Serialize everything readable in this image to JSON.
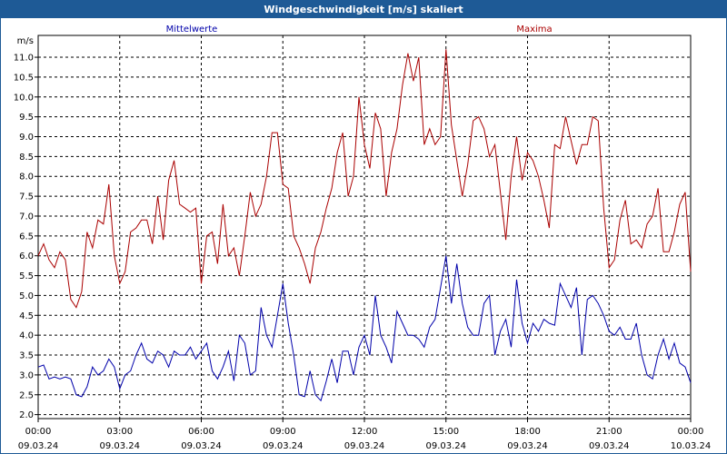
{
  "window": {
    "title": "Windgeschwindigkeit [m/s] skaliert"
  },
  "chart_data": {
    "type": "line",
    "title": "Windgeschwindigkeit [m/s] skaliert",
    "ylabel": "m/s",
    "xlabel": "",
    "ylim": [
      1.9,
      11.55
    ],
    "xlim_hours": [
      0,
      24
    ],
    "grid": true,
    "y_ticks": [
      "2.0",
      "2.5",
      "3.0",
      "3.5",
      "4.0",
      "4.5",
      "5.0",
      "5.5",
      "6.0",
      "6.5",
      "7.0",
      "7.5",
      "8.0",
      "8.5",
      "9.0",
      "9.5",
      "10.0",
      "10.5",
      "11.0"
    ],
    "x_ticks": [
      {
        "time": "00:00",
        "date": "09.03.24"
      },
      {
        "time": "03:00",
        "date": "09.03.24"
      },
      {
        "time": "06:00",
        "date": "09.03.24"
      },
      {
        "time": "09:00",
        "date": "09.03.24"
      },
      {
        "time": "12:00",
        "date": "09.03.24"
      },
      {
        "time": "15:00",
        "date": "09.03.24"
      },
      {
        "time": "18:00",
        "date": "09.03.24"
      },
      {
        "time": "21:00",
        "date": "09.03.24"
      },
      {
        "time": "00:00",
        "date": "10.03.24"
      }
    ],
    "series": [
      {
        "name": "Mittelwerte",
        "color": "#0000aa",
        "points": [
          [
            0.0,
            3.2
          ],
          [
            0.2,
            3.25
          ],
          [
            0.4,
            2.9
          ],
          [
            0.6,
            2.95
          ],
          [
            0.8,
            2.9
          ],
          [
            1.0,
            2.95
          ],
          [
            1.2,
            2.9
          ],
          [
            1.4,
            2.5
          ],
          [
            1.6,
            2.45
          ],
          [
            1.8,
            2.7
          ],
          [
            2.0,
            3.2
          ],
          [
            2.2,
            3.0
          ],
          [
            2.4,
            3.1
          ],
          [
            2.6,
            3.4
          ],
          [
            2.8,
            3.2
          ],
          [
            3.0,
            2.65
          ],
          [
            3.2,
            3.0
          ],
          [
            3.4,
            3.1
          ],
          [
            3.6,
            3.5
          ],
          [
            3.8,
            3.8
          ],
          [
            4.0,
            3.4
          ],
          [
            4.2,
            3.3
          ],
          [
            4.4,
            3.6
          ],
          [
            4.6,
            3.5
          ],
          [
            4.8,
            3.2
          ],
          [
            5.0,
            3.6
          ],
          [
            5.2,
            3.5
          ],
          [
            5.4,
            3.5
          ],
          [
            5.6,
            3.7
          ],
          [
            5.8,
            3.4
          ],
          [
            6.0,
            3.6
          ],
          [
            6.2,
            3.8
          ],
          [
            6.4,
            3.1
          ],
          [
            6.6,
            2.9
          ],
          [
            6.8,
            3.2
          ],
          [
            7.0,
            3.6
          ],
          [
            7.2,
            2.85
          ],
          [
            7.4,
            4.0
          ],
          [
            7.6,
            3.8
          ],
          [
            7.8,
            3.0
          ],
          [
            8.0,
            3.1
          ],
          [
            8.2,
            4.7
          ],
          [
            8.4,
            4.0
          ],
          [
            8.6,
            3.7
          ],
          [
            8.8,
            4.5
          ],
          [
            9.0,
            5.3
          ],
          [
            9.2,
            4.3
          ],
          [
            9.4,
            3.5
          ],
          [
            9.6,
            2.5
          ],
          [
            9.8,
            2.45
          ],
          [
            10.0,
            3.1
          ],
          [
            10.2,
            2.5
          ],
          [
            10.4,
            2.35
          ],
          [
            10.6,
            2.85
          ],
          [
            10.8,
            3.4
          ],
          [
            11.0,
            2.8
          ],
          [
            11.2,
            3.6
          ],
          [
            11.4,
            3.6
          ],
          [
            11.6,
            3.0
          ],
          [
            11.8,
            3.7
          ],
          [
            12.0,
            4.0
          ],
          [
            12.2,
            3.5
          ],
          [
            12.4,
            5.0
          ],
          [
            12.6,
            4.0
          ],
          [
            12.8,
            3.7
          ],
          [
            13.0,
            3.3
          ],
          [
            13.2,
            4.6
          ],
          [
            13.4,
            4.3
          ],
          [
            13.6,
            4.0
          ],
          [
            13.8,
            4.0
          ],
          [
            14.0,
            3.9
          ],
          [
            14.2,
            3.7
          ],
          [
            14.4,
            4.2
          ],
          [
            14.6,
            4.4
          ],
          [
            14.8,
            5.2
          ],
          [
            15.0,
            6.0
          ],
          [
            15.2,
            4.8
          ],
          [
            15.4,
            5.8
          ],
          [
            15.6,
            4.8
          ],
          [
            15.8,
            4.2
          ],
          [
            16.0,
            4.0
          ],
          [
            16.2,
            4.0
          ],
          [
            16.4,
            4.8
          ],
          [
            16.6,
            5.0
          ],
          [
            16.8,
            3.5
          ],
          [
            17.0,
            4.1
          ],
          [
            17.2,
            4.4
          ],
          [
            17.4,
            3.7
          ],
          [
            17.6,
            5.4
          ],
          [
            17.8,
            4.3
          ],
          [
            18.0,
            3.8
          ],
          [
            18.2,
            4.3
          ],
          [
            18.4,
            4.1
          ],
          [
            18.6,
            4.4
          ],
          [
            18.8,
            4.3
          ],
          [
            19.0,
            4.25
          ],
          [
            19.2,
            5.3
          ],
          [
            19.4,
            5.0
          ],
          [
            19.6,
            4.7
          ],
          [
            19.8,
            5.2
          ],
          [
            20.0,
            3.5
          ],
          [
            20.2,
            4.9
          ],
          [
            20.4,
            5.0
          ],
          [
            20.6,
            4.8
          ],
          [
            20.8,
            4.5
          ],
          [
            21.0,
            4.1
          ],
          [
            21.2,
            4.0
          ],
          [
            21.4,
            4.2
          ],
          [
            21.6,
            3.9
          ],
          [
            21.8,
            3.9
          ],
          [
            22.0,
            4.3
          ],
          [
            22.2,
            3.5
          ],
          [
            22.4,
            3.0
          ],
          [
            22.6,
            2.9
          ],
          [
            22.8,
            3.5
          ],
          [
            23.0,
            3.9
          ],
          [
            23.2,
            3.4
          ],
          [
            23.4,
            3.8
          ],
          [
            23.6,
            3.3
          ],
          [
            23.8,
            3.2
          ],
          [
            24.0,
            2.8
          ]
        ]
      },
      {
        "name": "Maxima",
        "color": "#aa0000",
        "points": [
          [
            0.0,
            6.0
          ],
          [
            0.2,
            6.3
          ],
          [
            0.4,
            5.9
          ],
          [
            0.6,
            5.7
          ],
          [
            0.8,
            6.1
          ],
          [
            1.0,
            5.9
          ],
          [
            1.2,
            4.9
          ],
          [
            1.4,
            4.7
          ],
          [
            1.6,
            5.1
          ],
          [
            1.8,
            6.6
          ],
          [
            2.0,
            6.2
          ],
          [
            2.2,
            6.9
          ],
          [
            2.4,
            6.8
          ],
          [
            2.6,
            7.8
          ],
          [
            2.8,
            6.0
          ],
          [
            3.0,
            5.3
          ],
          [
            3.2,
            5.6
          ],
          [
            3.4,
            6.6
          ],
          [
            3.6,
            6.7
          ],
          [
            3.8,
            6.9
          ],
          [
            4.0,
            6.9
          ],
          [
            4.2,
            6.3
          ],
          [
            4.4,
            7.5
          ],
          [
            4.6,
            6.4
          ],
          [
            4.8,
            7.9
          ],
          [
            5.0,
            8.4
          ],
          [
            5.2,
            7.3
          ],
          [
            5.4,
            7.2
          ],
          [
            5.6,
            7.1
          ],
          [
            5.8,
            7.2
          ],
          [
            6.0,
            5.3
          ],
          [
            6.2,
            6.5
          ],
          [
            6.4,
            6.6
          ],
          [
            6.6,
            5.8
          ],
          [
            6.8,
            7.3
          ],
          [
            7.0,
            6.0
          ],
          [
            7.2,
            6.2
          ],
          [
            7.4,
            5.5
          ],
          [
            7.6,
            6.5
          ],
          [
            7.8,
            7.6
          ],
          [
            8.0,
            7.0
          ],
          [
            8.2,
            7.3
          ],
          [
            8.4,
            8.0
          ],
          [
            8.6,
            9.1
          ],
          [
            8.8,
            9.1
          ],
          [
            9.0,
            7.8
          ],
          [
            9.2,
            7.7
          ],
          [
            9.4,
            6.5
          ],
          [
            9.6,
            6.2
          ],
          [
            9.8,
            5.8
          ],
          [
            10.0,
            5.3
          ],
          [
            10.2,
            6.2
          ],
          [
            10.4,
            6.6
          ],
          [
            10.6,
            7.2
          ],
          [
            10.8,
            7.7
          ],
          [
            11.0,
            8.6
          ],
          [
            11.2,
            9.1
          ],
          [
            11.4,
            7.5
          ],
          [
            11.6,
            8.0
          ],
          [
            11.8,
            10.0
          ],
          [
            12.0,
            8.8
          ],
          [
            12.2,
            8.2
          ],
          [
            12.4,
            9.6
          ],
          [
            12.6,
            9.2
          ],
          [
            12.8,
            7.5
          ],
          [
            13.0,
            8.6
          ],
          [
            13.2,
            9.2
          ],
          [
            13.4,
            10.3
          ],
          [
            13.6,
            11.1
          ],
          [
            13.8,
            10.4
          ],
          [
            14.0,
            11.0
          ],
          [
            14.2,
            8.8
          ],
          [
            14.4,
            9.2
          ],
          [
            14.6,
            8.8
          ],
          [
            14.8,
            9.0
          ],
          [
            15.0,
            11.2
          ],
          [
            15.2,
            9.3
          ],
          [
            15.4,
            8.4
          ],
          [
            15.6,
            7.5
          ],
          [
            15.8,
            8.3
          ],
          [
            16.0,
            9.4
          ],
          [
            16.2,
            9.5
          ],
          [
            16.4,
            9.2
          ],
          [
            16.6,
            8.5
          ],
          [
            16.8,
            8.8
          ],
          [
            17.0,
            7.6
          ],
          [
            17.2,
            6.4
          ],
          [
            17.4,
            8.0
          ],
          [
            17.6,
            9.0
          ],
          [
            17.8,
            7.9
          ],
          [
            18.0,
            8.6
          ],
          [
            18.2,
            8.4
          ],
          [
            18.4,
            8.0
          ],
          [
            18.6,
            7.4
          ],
          [
            18.8,
            6.7
          ],
          [
            19.0,
            8.8
          ],
          [
            19.2,
            8.7
          ],
          [
            19.4,
            9.5
          ],
          [
            19.6,
            8.9
          ],
          [
            19.8,
            8.3
          ],
          [
            20.0,
            8.8
          ],
          [
            20.2,
            8.8
          ],
          [
            20.4,
            9.5
          ],
          [
            20.6,
            9.4
          ],
          [
            20.8,
            7.2
          ],
          [
            21.0,
            5.7
          ],
          [
            21.2,
            5.9
          ],
          [
            21.4,
            6.9
          ],
          [
            21.6,
            7.4
          ],
          [
            21.8,
            6.3
          ],
          [
            22.0,
            6.4
          ],
          [
            22.2,
            6.2
          ],
          [
            22.4,
            6.8
          ],
          [
            22.6,
            7.0
          ],
          [
            22.8,
            7.7
          ],
          [
            23.0,
            6.1
          ],
          [
            23.2,
            6.1
          ],
          [
            23.4,
            6.6
          ],
          [
            23.6,
            7.3
          ],
          [
            23.8,
            7.6
          ],
          [
            24.0,
            5.6
          ]
        ]
      }
    ]
  }
}
